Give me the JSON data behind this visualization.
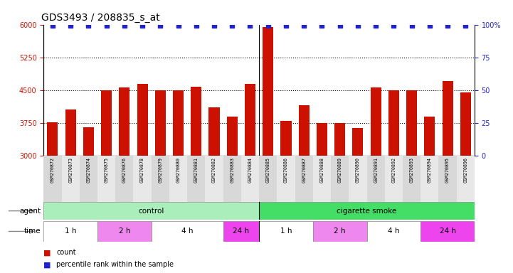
{
  "title": "GDS3493 / 208835_s_at",
  "samples": [
    "GSM270872",
    "GSM270873",
    "GSM270874",
    "GSM270875",
    "GSM270876",
    "GSM270878",
    "GSM270879",
    "GSM270880",
    "GSM270881",
    "GSM270882",
    "GSM270883",
    "GSM270884",
    "GSM270885",
    "GSM270886",
    "GSM270887",
    "GSM270888",
    "GSM270889",
    "GSM270890",
    "GSM270891",
    "GSM270892",
    "GSM270893",
    "GSM270894",
    "GSM270895",
    "GSM270896"
  ],
  "counts": [
    3760,
    4050,
    3650,
    4500,
    4560,
    4650,
    4500,
    4490,
    4580,
    4100,
    3900,
    4650,
    5950,
    3800,
    4150,
    3750,
    3750,
    3640,
    4560,
    4500,
    4490,
    3900,
    4700,
    4450
  ],
  "bar_color": "#cc1100",
  "dot_color": "#2222cc",
  "ymin": 3000,
  "ymax": 6000,
  "yticks": [
    3000,
    3750,
    4500,
    5250,
    6000
  ],
  "right_yticks": [
    0,
    25,
    50,
    75,
    100
  ],
  "dotted_grid_values": [
    3750,
    4500,
    5250
  ],
  "agent_groups": [
    {
      "label": "control",
      "start": 0,
      "end": 12,
      "color": "#aaeebb"
    },
    {
      "label": "cigarette smoke",
      "start": 12,
      "end": 24,
      "color": "#44dd66"
    }
  ],
  "time_groups": [
    {
      "label": "1 h",
      "start": 0,
      "end": 3,
      "color": "#ffffff"
    },
    {
      "label": "2 h",
      "start": 3,
      "end": 6,
      "color": "#ee88ee"
    },
    {
      "label": "4 h",
      "start": 6,
      "end": 10,
      "color": "#ffffff"
    },
    {
      "label": "24 h",
      "start": 10,
      "end": 12,
      "color": "#ee44ee"
    },
    {
      "label": "1 h",
      "start": 12,
      "end": 15,
      "color": "#ffffff"
    },
    {
      "label": "2 h",
      "start": 15,
      "end": 18,
      "color": "#ee88ee"
    },
    {
      "label": "4 h",
      "start": 18,
      "end": 21,
      "color": "#ffffff"
    },
    {
      "label": "24 h",
      "start": 21,
      "end": 24,
      "color": "#ee44ee"
    }
  ],
  "legend_count_color": "#cc1100",
  "legend_dot_color": "#2222cc",
  "title_fontsize": 10,
  "tick_fontsize": 7,
  "label_fontsize": 8,
  "bar_width": 0.6
}
